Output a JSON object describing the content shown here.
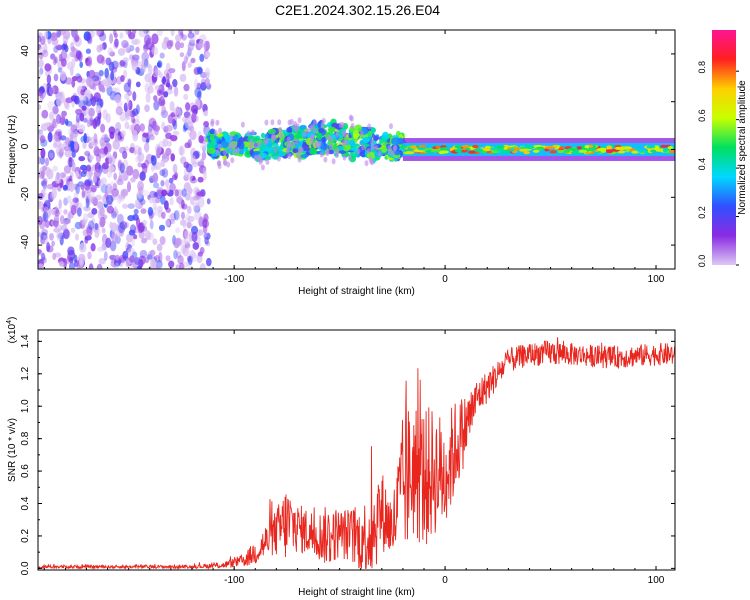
{
  "title": "C2E1.2024.302.15.26.E04",
  "chart_data": [
    {
      "type": "heatmap",
      "name": "spectrogram",
      "xlabel": "Height of straight line (km)",
      "ylabel": "Frequency (Hz)",
      "xlim": [
        -193,
        109
      ],
      "ylim": [
        -50,
        50
      ],
      "x_ticks": [
        -100,
        0,
        100
      ],
      "y_ticks": [
        -40,
        -20,
        0,
        20,
        40
      ],
      "colorbar": {
        "label": "Normalized spectral amplitude",
        "range": [
          0,
          0.97
        ],
        "ticks": [
          0.0,
          0.2,
          0.4,
          0.6,
          0.8
        ],
        "colors": [
          "#dcc8f4",
          "#8a2be2",
          "#3050ff",
          "#00d8ff",
          "#00e060",
          "#c8ff00",
          "#ffd000",
          "#ff2020",
          "#ff1493"
        ]
      },
      "regions": [
        {
          "desc": "scattered low-amplitude noise",
          "x": [
            -193,
            -112
          ],
          "freq": [
            -50,
            50
          ],
          "amplitude": [
            0.0,
            0.25
          ]
        },
        {
          "desc": "fragmented echo band",
          "x": [
            -112,
            -20
          ],
          "center_freq": [
            [
              -112,
              2
            ],
            [
              -90,
              1
            ],
            [
              -60,
              5
            ],
            [
              -40,
              3
            ],
            [
              -20,
              1
            ]
          ],
          "half_width_hz": [
            3,
            6
          ],
          "amplitude": [
            0.2,
            0.6
          ]
        },
        {
          "desc": "stable narrow echo band",
          "x": [
            -20,
            109
          ],
          "center_freq": 0,
          "half_width_hz": 3,
          "amplitude": [
            0.4,
            0.9
          ]
        }
      ]
    },
    {
      "type": "line",
      "name": "snr",
      "xlabel": "Height of straight line (km)",
      "ylabel": "SNR (10 * v/v)",
      "scale_label": "(x10",
      "scale_exp": "4",
      "scale_suffix": ")",
      "xlim": [
        -193,
        109
      ],
      "ylim": [
        -0.01,
        1.47
      ],
      "x_ticks": [
        -100,
        0,
        100
      ],
      "y_ticks": [
        0.0,
        0.2,
        0.4,
        0.6,
        0.8,
        1.0,
        1.2,
        1.4
      ],
      "y_tick_labels": [
        "0.0",
        "0.2",
        "0.4",
        "0.6",
        "0.8",
        "1.0",
        "1.2",
        "1.4"
      ],
      "color": "#e8261e",
      "envelope_x": [
        -193,
        -120,
        -105,
        -95,
        -90,
        -80,
        -75,
        -70,
        -60,
        -55,
        -50,
        -40,
        -35,
        -30,
        -25,
        -20,
        -15,
        -10,
        -5,
        0,
        5,
        10,
        15,
        20,
        25,
        30,
        40,
        50,
        60,
        80,
        100,
        109
      ],
      "envelope_mean": [
        0.01,
        0.01,
        0.02,
        0.05,
        0.1,
        0.22,
        0.28,
        0.25,
        0.2,
        0.2,
        0.22,
        0.18,
        0.22,
        0.36,
        0.24,
        0.5,
        0.62,
        0.55,
        0.6,
        0.58,
        0.75,
        0.88,
        1.05,
        1.12,
        1.2,
        1.28,
        1.32,
        1.33,
        1.32,
        1.3,
        1.32,
        1.32
      ],
      "envelope_spread": [
        0.01,
        0.01,
        0.02,
        0.04,
        0.08,
        0.15,
        0.25,
        0.15,
        0.15,
        0.2,
        0.15,
        0.2,
        0.3,
        0.25,
        0.2,
        0.45,
        0.45,
        0.45,
        0.4,
        0.35,
        0.3,
        0.2,
        0.12,
        0.1,
        0.09,
        0.08,
        0.07,
        0.08,
        0.07,
        0.07,
        0.07,
        0.07
      ]
    }
  ]
}
